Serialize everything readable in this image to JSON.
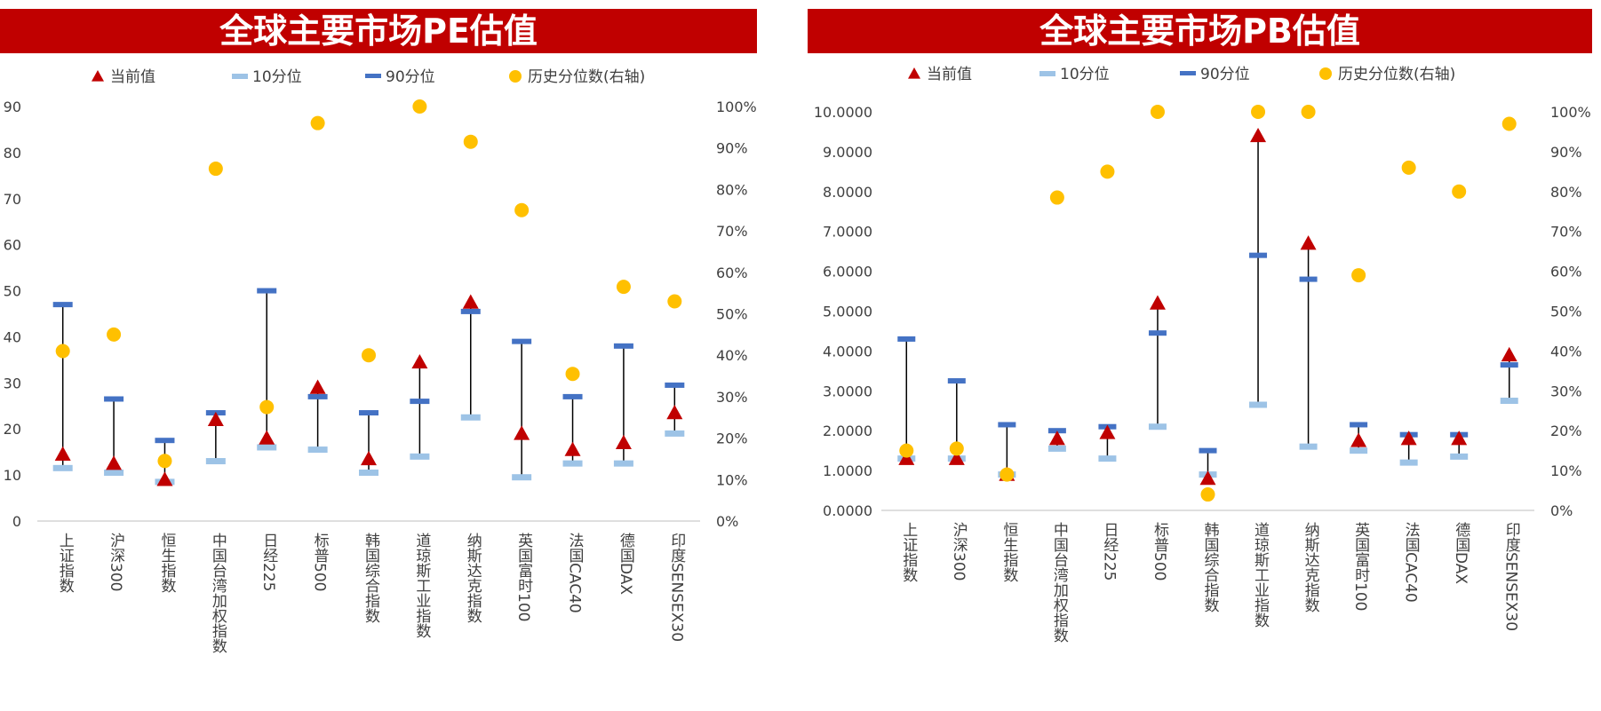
{
  "colors": {
    "banner": "#c00000",
    "current": "#c00000",
    "p10": "#9dc3e6",
    "p90": "#4472c4",
    "pct": "#ffc000",
    "whisker": "#000000",
    "axis_text": "#404040"
  },
  "legend": {
    "current": "当前值",
    "p10": "10分位",
    "p90": "90分位",
    "pct": "历史分位数(右轴)"
  },
  "chart_data": [
    {
      "type": "scatter",
      "title": "全球主要市场PE估值",
      "categories": [
        "上证指数",
        "沪深300",
        "恒生指数",
        "中国台湾加权指数",
        "日经225",
        "标普500",
        "韩国综合指数",
        "道琼斯工业指数",
        "纳斯达克指数",
        "英国富时100",
        "法国CAC40",
        "德国DAX",
        "印度SENSEX30"
      ],
      "ylim": [
        0,
        90
      ],
      "yticks": [
        "0",
        "10",
        "20",
        "30",
        "40",
        "50",
        "60",
        "70",
        "80",
        "90"
      ],
      "y2lim": [
        0,
        1
      ],
      "y2ticks": [
        "0%",
        "10%",
        "20%",
        "30%",
        "40%",
        "50%",
        "60%",
        "70%",
        "80%",
        "90%",
        "100%"
      ],
      "series": [
        {
          "name": "当前值",
          "values": [
            14.5,
            12.5,
            9.0,
            22.0,
            18.0,
            29.0,
            13.5,
            34.5,
            47.5,
            19.0,
            15.5,
            17.0,
            23.5
          ]
        },
        {
          "name": "10分位",
          "values": [
            11.5,
            10.5,
            8.5,
            13.0,
            16.0,
            15.5,
            10.5,
            14.0,
            22.5,
            9.5,
            12.5,
            12.5,
            19.0
          ]
        },
        {
          "name": "90分位",
          "values": [
            47.0,
            26.5,
            17.5,
            23.5,
            50.0,
            27.0,
            23.5,
            26.0,
            45.5,
            39.0,
            27.0,
            38.0,
            29.5
          ]
        },
        {
          "name": "历史分位数(右轴)",
          "values": [
            0.41,
            0.45,
            0.145,
            0.85,
            0.275,
            0.96,
            0.4,
            1.0,
            0.915,
            0.75,
            0.355,
            0.565,
            0.53
          ]
        }
      ]
    },
    {
      "type": "scatter",
      "title": "全球主要市场PB估值",
      "categories": [
        "上证指数",
        "沪深300",
        "恒生指数",
        "中国台湾加权指数",
        "日经225",
        "标普500",
        "韩国综合指数",
        "道琼斯工业指数",
        "纳斯达克指数",
        "英国富时100",
        "法国CAC40",
        "德国DAX",
        "印度SENSEX30"
      ],
      "ylim": [
        0,
        10
      ],
      "yticks": [
        "0.0000",
        "1.0000",
        "2.0000",
        "3.0000",
        "4.0000",
        "5.0000",
        "6.0000",
        "7.0000",
        "8.0000",
        "9.0000",
        "10.0000"
      ],
      "y2lim": [
        0,
        1
      ],
      "y2ticks": [
        "0%",
        "10%",
        "20%",
        "30%",
        "40%",
        "50%",
        "60%",
        "70%",
        "80%",
        "90%",
        "100%"
      ],
      "series": [
        {
          "name": "当前值",
          "values": [
            1.3,
            1.3,
            0.9,
            1.8,
            1.95,
            5.2,
            0.8,
            9.4,
            6.7,
            1.75,
            1.8,
            1.8,
            3.9
          ]
        },
        {
          "name": "10分位",
          "values": [
            1.3,
            1.3,
            0.9,
            1.55,
            1.3,
            2.1,
            0.9,
            2.65,
            1.6,
            1.5,
            1.2,
            1.35,
            2.75
          ]
        },
        {
          "name": "90分位",
          "values": [
            4.3,
            3.25,
            2.15,
            2.0,
            2.1,
            4.45,
            1.5,
            6.4,
            5.8,
            2.15,
            1.9,
            1.9,
            3.65
          ]
        },
        {
          "name": "历史分位数(右轴)",
          "values": [
            0.15,
            0.155,
            0.09,
            0.785,
            0.85,
            1.0,
            0.04,
            1.0,
            1.0,
            0.59,
            0.86,
            0.8,
            0.97
          ]
        }
      ]
    }
  ]
}
